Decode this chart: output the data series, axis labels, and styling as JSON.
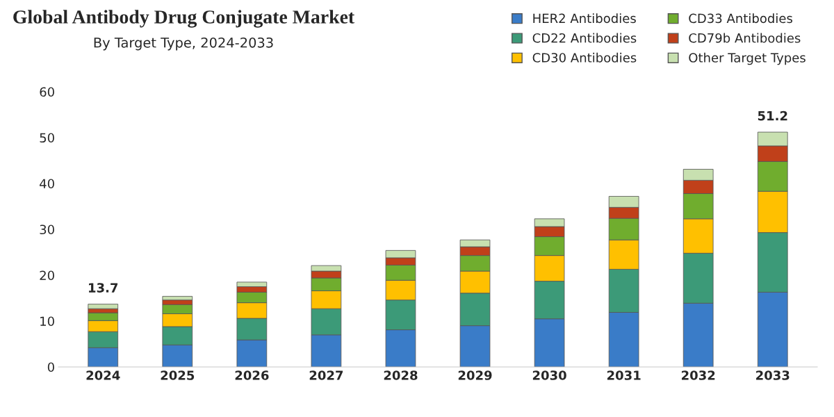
{
  "chart_data": {
    "type": "bar",
    "stacked": true,
    "title": "Global Antibody Drug Conjugate Market",
    "subtitle": "By Target Type, 2024-2033",
    "categories": [
      "2024",
      "2025",
      "2026",
      "2027",
      "2028",
      "2029",
      "2030",
      "2031",
      "2032",
      "2033"
    ],
    "series": [
      {
        "name": "HER2 Antibodies",
        "color": "#3a7cc8",
        "values": [
          4.2,
          4.8,
          5.9,
          7.0,
          8.1,
          9.0,
          10.5,
          11.9,
          13.9,
          16.3
        ]
      },
      {
        "name": "CD22 Antibodies",
        "color": "#3c9a78",
        "values": [
          3.5,
          4.0,
          4.7,
          5.7,
          6.5,
          7.1,
          8.2,
          9.4,
          10.9,
          13.0
        ]
      },
      {
        "name": "CD30 Antibodies",
        "color": "#ffc000",
        "values": [
          2.4,
          2.8,
          3.4,
          3.9,
          4.3,
          4.8,
          5.6,
          6.4,
          7.5,
          9.0
        ]
      },
      {
        "name": "CD33 Antibodies",
        "color": "#70ad2e",
        "values": [
          1.7,
          2.0,
          2.3,
          2.8,
          3.3,
          3.4,
          4.1,
          4.7,
          5.5,
          6.5
        ]
      },
      {
        "name": "CD79b Antibodies",
        "color": "#c0401a",
        "values": [
          0.9,
          1.0,
          1.2,
          1.5,
          1.6,
          1.9,
          2.2,
          2.4,
          2.9,
          3.4
        ]
      },
      {
        "name": "Other Target Types",
        "color": "#c8e0b0",
        "values": [
          1.0,
          0.8,
          1.0,
          1.2,
          1.6,
          1.5,
          1.7,
          2.4,
          2.4,
          3.0
        ]
      }
    ],
    "totals": [
      "13.7",
      null,
      null,
      null,
      null,
      null,
      null,
      null,
      null,
      "51.2"
    ],
    "ylim": [
      0,
      60
    ],
    "yticks": [
      0,
      10,
      20,
      30,
      40,
      50,
      60
    ],
    "grid": false,
    "legend": "top right",
    "tick_labels": "xy"
  }
}
